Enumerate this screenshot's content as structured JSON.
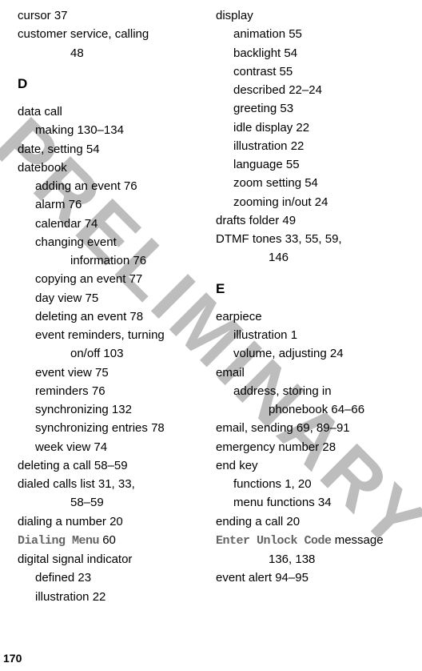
{
  "watermark": "PRELIMINARY",
  "pageNumber": "170",
  "leftColumn": {
    "topEntries": [
      {
        "text": "cursor  37",
        "cls": "entry"
      },
      {
        "text": "customer service, calling",
        "cls": "entry"
      },
      {
        "text": "48",
        "cls": "cont"
      }
    ],
    "sectionLetter": "D",
    "entries": [
      {
        "text": "data call",
        "cls": "entry"
      },
      {
        "text": "making  130–134",
        "cls": "sub"
      },
      {
        "text": "date, setting  54",
        "cls": "entry"
      },
      {
        "text": "datebook",
        "cls": "entry"
      },
      {
        "text": "adding an event  76",
        "cls": "sub"
      },
      {
        "text": "alarm  76",
        "cls": "sub"
      },
      {
        "text": "calendar  74",
        "cls": "sub"
      },
      {
        "text": "changing event",
        "cls": "sub"
      },
      {
        "text": "information  76",
        "cls": "subsub"
      },
      {
        "text": "copying an event  77",
        "cls": "sub"
      },
      {
        "text": "day view  75",
        "cls": "sub"
      },
      {
        "text": "deleting an event  78",
        "cls": "sub"
      },
      {
        "text": "event reminders, turning",
        "cls": "sub"
      },
      {
        "text": "on/off  103",
        "cls": "subsub"
      },
      {
        "text": "event view  75",
        "cls": "sub"
      },
      {
        "text": "reminders  76",
        "cls": "sub"
      },
      {
        "text": "synchronizing  132",
        "cls": "sub"
      },
      {
        "text": "synchronizing entries  78",
        "cls": "sub"
      },
      {
        "text": "week view  74",
        "cls": "sub"
      },
      {
        "text": "deleting a call  58–59",
        "cls": "entry"
      },
      {
        "text": "dialed calls list  31, 33,",
        "cls": "entry"
      },
      {
        "text": "58–59",
        "cls": "cont"
      },
      {
        "text": "dialing a number  20",
        "cls": "entry"
      },
      {
        "mono": "Dialing Menu",
        "after": "  60",
        "cls": "entry"
      },
      {
        "text": "digital signal indicator",
        "cls": "entry"
      },
      {
        "text": "defined  23",
        "cls": "sub"
      },
      {
        "text": "illustration  22",
        "cls": "sub"
      }
    ]
  },
  "rightColumn": {
    "topEntries": [
      {
        "text": "display",
        "cls": "entry"
      },
      {
        "text": "animation  55",
        "cls": "sub"
      },
      {
        "text": "backlight  54",
        "cls": "sub"
      },
      {
        "text": "contrast  55",
        "cls": "sub"
      },
      {
        "text": "described  22–24",
        "cls": "sub"
      },
      {
        "text": "greeting  53",
        "cls": "sub"
      },
      {
        "text": "idle display  22",
        "cls": "sub"
      },
      {
        "text": "illustration  22",
        "cls": "sub"
      },
      {
        "text": "language  55",
        "cls": "sub"
      },
      {
        "text": "zoom setting  54",
        "cls": "sub"
      },
      {
        "text": "zooming in/out  24",
        "cls": "sub"
      },
      {
        "text": "drafts folder  49",
        "cls": "entry"
      },
      {
        "text": "DTMF tones  33, 55, 59,",
        "cls": "entry"
      },
      {
        "text": "146",
        "cls": "cont"
      }
    ],
    "sectionLetter": "E",
    "entries": [
      {
        "text": "earpiece",
        "cls": "entry"
      },
      {
        "text": "illustration  1",
        "cls": "sub"
      },
      {
        "text": "volume, adjusting  24",
        "cls": "sub"
      },
      {
        "text": "email",
        "cls": "entry"
      },
      {
        "text": "address, storing in",
        "cls": "sub"
      },
      {
        "text": "phonebook  64–66",
        "cls": "subsub"
      },
      {
        "text": "email, sending  69, 89–91",
        "cls": "entry"
      },
      {
        "text": "emergency number  28",
        "cls": "entry"
      },
      {
        "text": "end key",
        "cls": "entry"
      },
      {
        "text": "functions  1, 20",
        "cls": "sub"
      },
      {
        "text": "menu functions  34",
        "cls": "sub"
      },
      {
        "text": "ending a call  20",
        "cls": "entry"
      },
      {
        "mono": "Enter Unlock Code",
        "after": " message",
        "cls": "entry"
      },
      {
        "text": "136, 138",
        "cls": "cont"
      },
      {
        "text": "event alert  94–95",
        "cls": "entry"
      }
    ]
  }
}
